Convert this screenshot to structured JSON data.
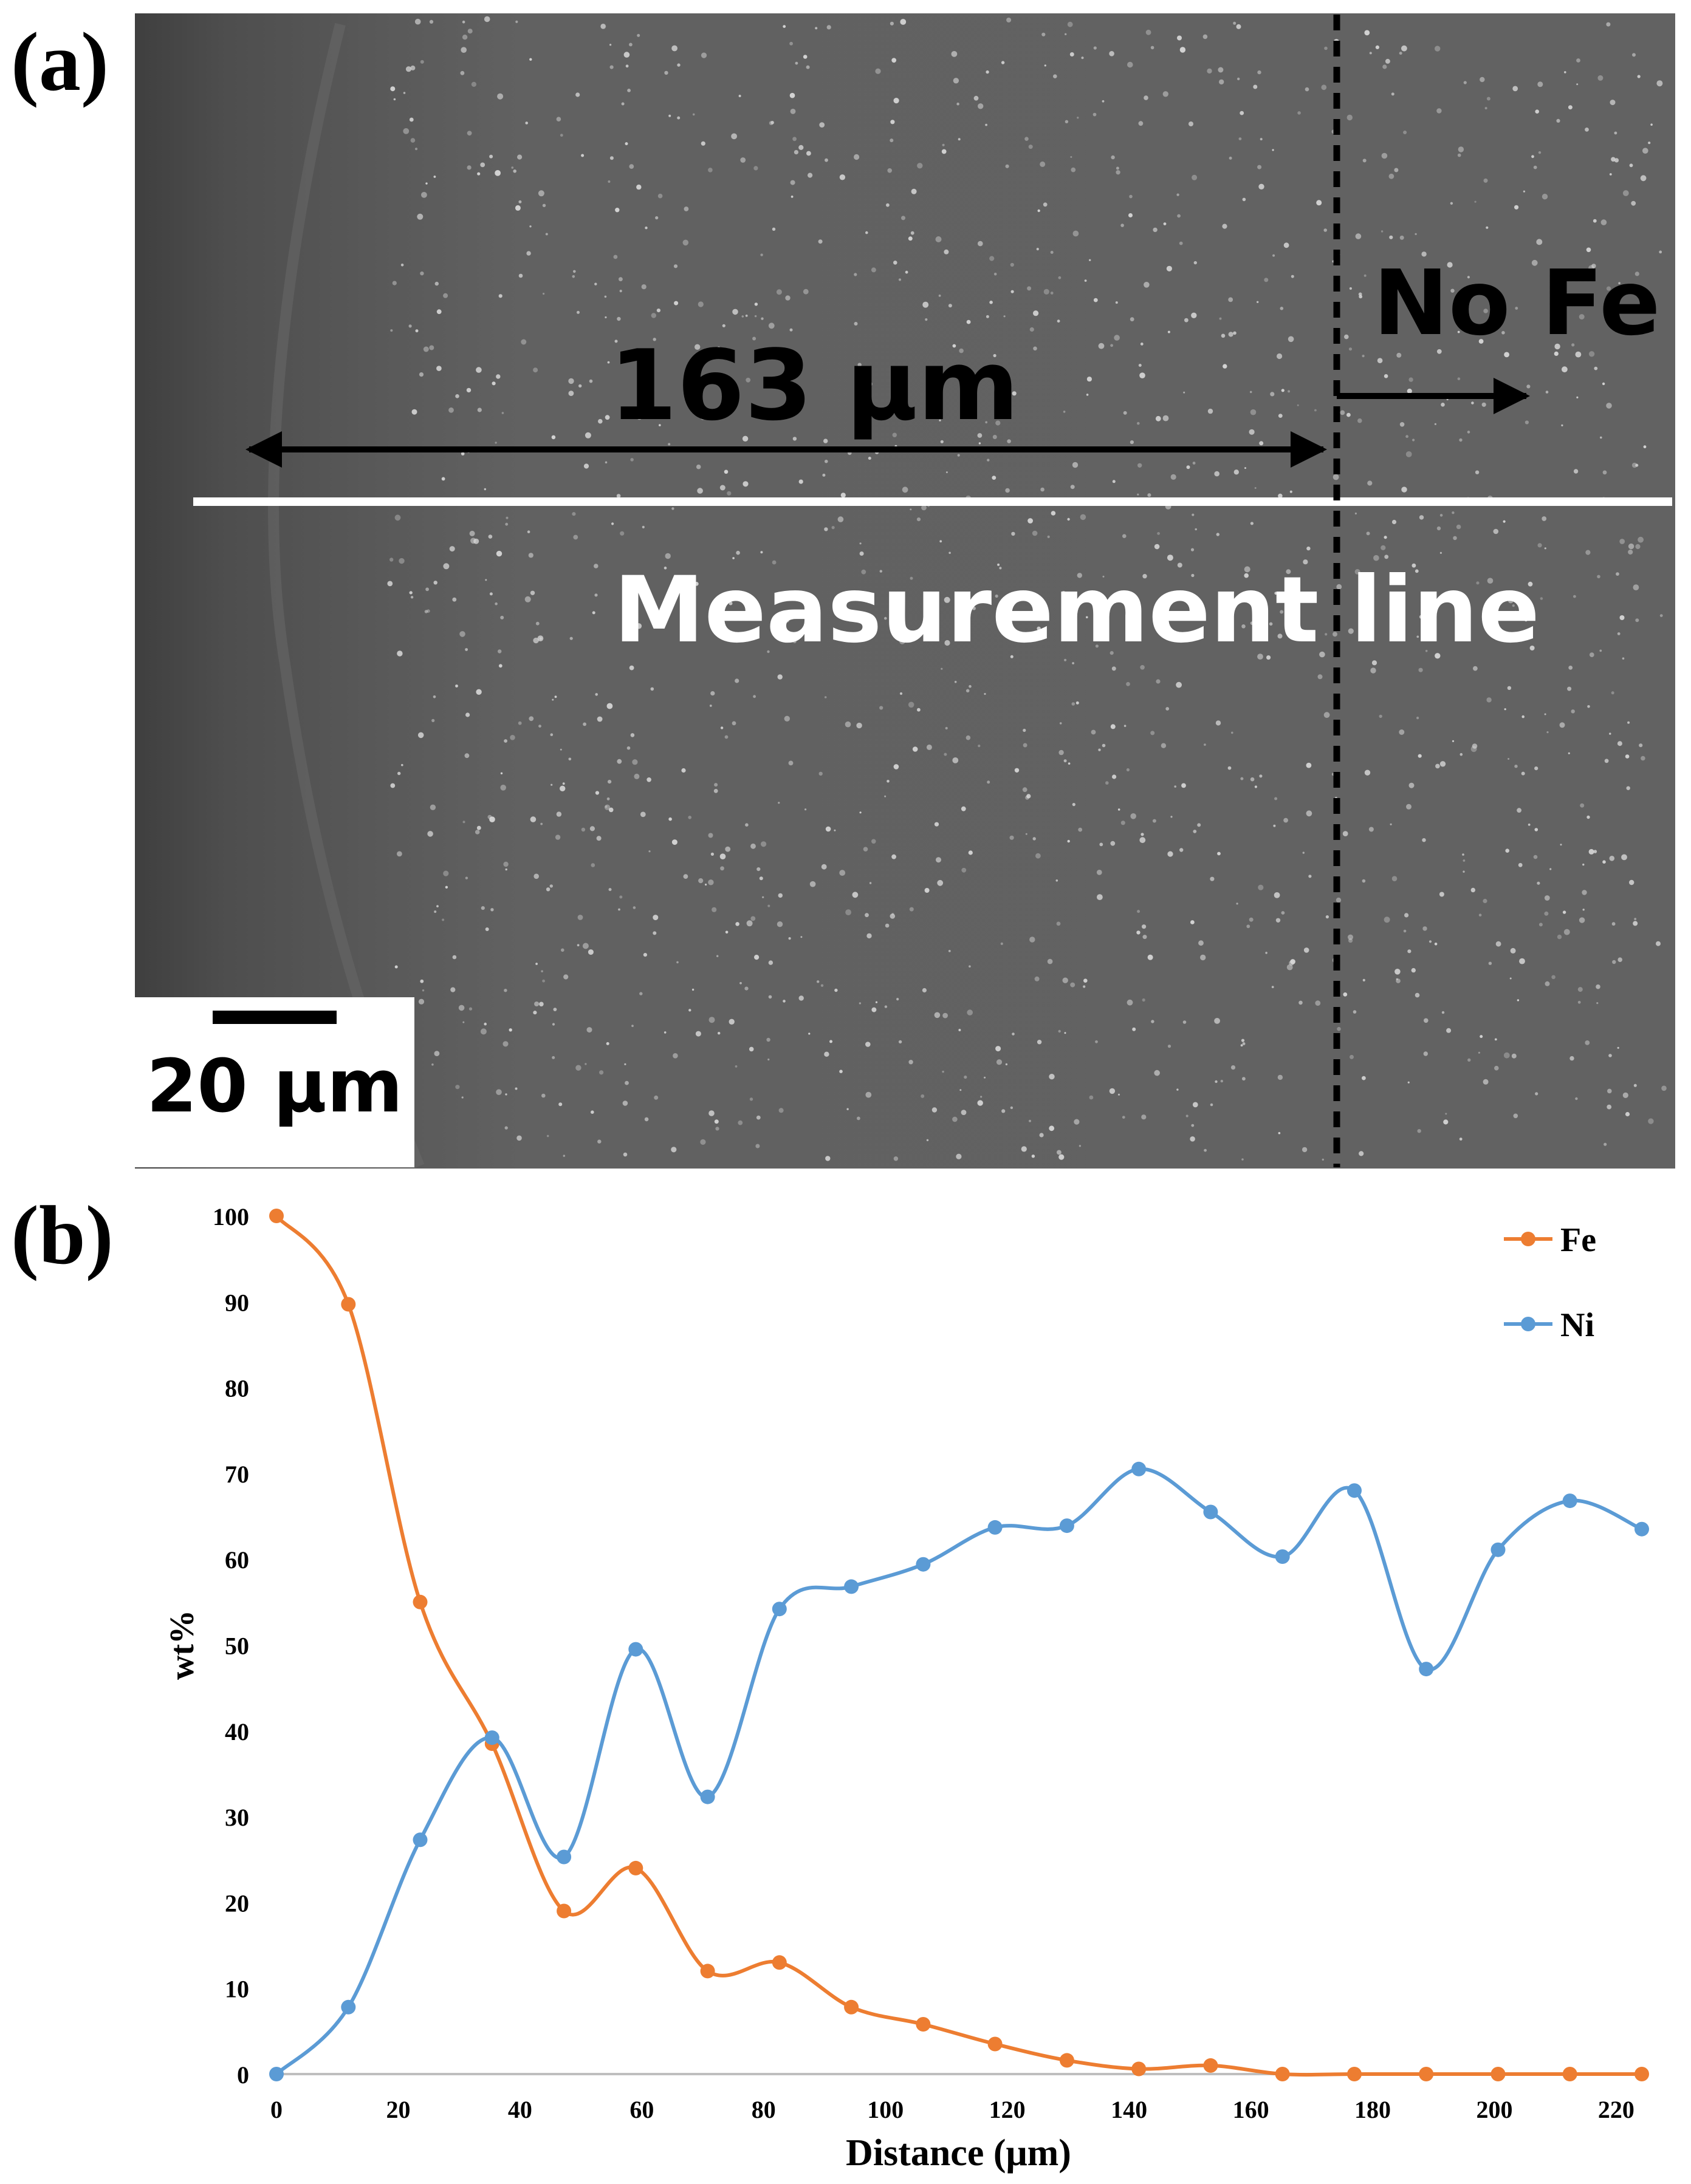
{
  "panel_a": {
    "panel_label": "(a)",
    "width_annotation": "163 μm",
    "region_annotation": "No Fe",
    "line_annotation": "Measurement line",
    "scale_bar_label": "20 μm"
  },
  "panel_b": {
    "panel_label": "(b)"
  },
  "chart_data": {
    "type": "line",
    "xlabel": "Distance (μm)",
    "ylabel": "wt%",
    "xlim": [
      0,
      224
    ],
    "ylim": [
      0,
      100
    ],
    "xticks": [
      0,
      20,
      40,
      60,
      80,
      100,
      120,
      140,
      160,
      180,
      200,
      220
    ],
    "yticks": [
      0,
      10,
      20,
      30,
      40,
      50,
      60,
      70,
      80,
      90,
      100
    ],
    "grid": false,
    "legend": "top-right",
    "smooth": true,
    "x": [
      0,
      11.8,
      23.6,
      35.4,
      47.2,
      59,
      70.8,
      82.6,
      94.4,
      106.2,
      118,
      129.8,
      141.6,
      153.4,
      165.2,
      177,
      188.8,
      200.6,
      212.4,
      224.2
    ],
    "series": [
      {
        "name": "Fe",
        "color": "#ED7D31",
        "values": [
          100,
          89.7,
          55,
          38.5,
          19,
          24,
          12,
          13,
          7.8,
          5.8,
          3.5,
          1.6,
          0.6,
          1,
          0,
          0,
          0,
          0,
          0,
          0
        ]
      },
      {
        "name": "Ni",
        "color": "#5B9BD5",
        "values": [
          0,
          7.8,
          27.3,
          39.2,
          25.3,
          49.5,
          32.3,
          54.2,
          56.8,
          59.4,
          63.7,
          63.9,
          70.5,
          65.5,
          60.3,
          68,
          47.2,
          61.1,
          66.8,
          63.5
        ]
      }
    ]
  }
}
